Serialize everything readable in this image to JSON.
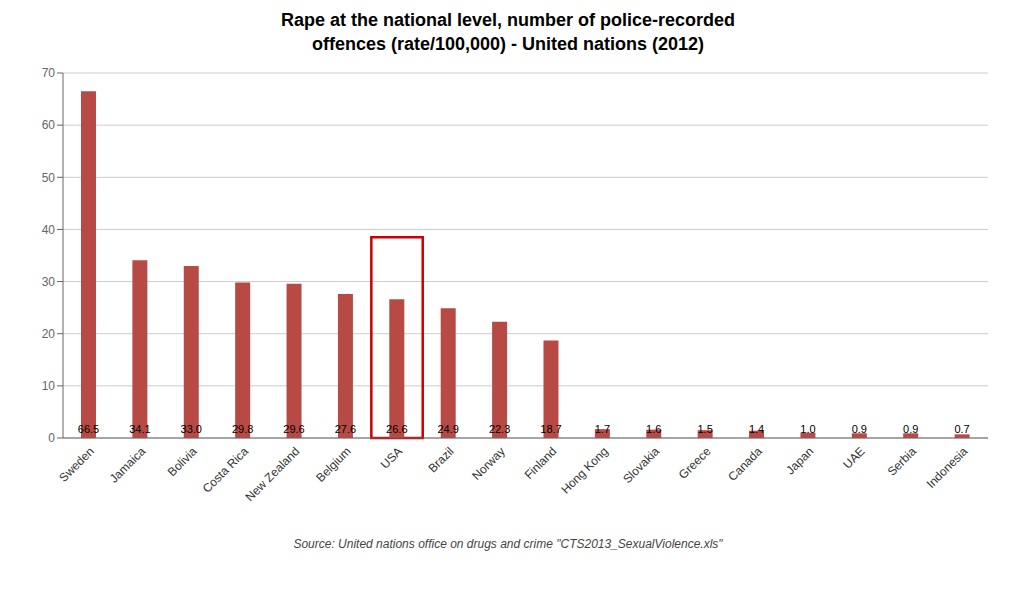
{
  "chart_data": {
    "type": "bar",
    "title": "Rape at the national level, number of police-recorded\noffences (rate/100,000) - United nations (2012)",
    "categories": [
      "Sweden",
      "Jamaica",
      "Bolivia",
      "Costa Rica",
      "New Zealand",
      "Belgium",
      "USA",
      "Brazil",
      "Norway",
      "Finland",
      "Hong Kong",
      "Slovakia",
      "Greece",
      "Canada",
      "Japan",
      "UAE",
      "Serbia",
      "Indonesia"
    ],
    "values": [
      66.5,
      34.1,
      33.0,
      29.8,
      29.6,
      27.6,
      26.6,
      24.9,
      22.3,
      18.7,
      1.7,
      1.6,
      1.5,
      1.4,
      1.0,
      0.9,
      0.9,
      0.7
    ],
    "value_labels": [
      "66.5",
      "34.1",
      "33.0",
      "29.8",
      "29.6",
      "27.6",
      "26.6",
      "24.9",
      "22.3",
      "18.7",
      "1.7",
      "1.6",
      "1.5",
      "1.4",
      "1.0",
      "0.9",
      "0.9",
      "0.7"
    ],
    "data_labels": true,
    "color": "#b84a45",
    "highlight": {
      "category": "USA",
      "top": 38.5,
      "color": "#cc0000"
    },
    "ylim": [
      0,
      70
    ],
    "yticks": [
      0,
      10,
      20,
      30,
      40,
      50,
      60,
      70
    ],
    "grid": true,
    "source": "Source: United nations office on drugs and crime \"CTS2013_SexualViolence.xls\""
  }
}
